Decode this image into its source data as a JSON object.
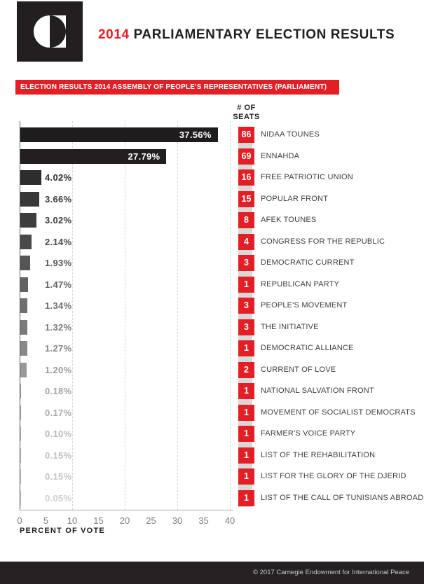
{
  "header": {
    "title_year": "2014",
    "title_rest": "PARLIAMENTARY ELECTION RESULTS"
  },
  "banner": {
    "label": "ELECTION RESULTS 2014 ASSEMBLY OF PEOPLE'S REPRESENTATIVES (PARLIAMENT)"
  },
  "seats_header": {
    "line1": "# OF",
    "line2": "SEATS"
  },
  "chart_data": {
    "type": "bar",
    "orientation": "horizontal",
    "title": "2014 Parliamentary Election Results",
    "xlabel": "PERCENT OF VOTE",
    "ylabel": "",
    "xlim": [
      0,
      40
    ],
    "xticks": [
      0,
      5,
      10,
      15,
      20,
      25,
      30,
      35,
      40
    ],
    "gridlines_at": [
      10,
      20,
      30,
      40
    ],
    "grid": "dashed-vertical",
    "series": [
      {
        "party": "NIDAA TOUNES",
        "percent": 37.56,
        "percent_label": "37.56%",
        "seats": 86,
        "bar_color": "#1f1c1d",
        "label_color": "#ffffff",
        "label_inside": true
      },
      {
        "party": "ENNAHDA",
        "percent": 27.79,
        "percent_label": "27.79%",
        "seats": 69,
        "bar_color": "#231f20",
        "label_color": "#ffffff",
        "label_inside": true
      },
      {
        "party": "FREE PATRIOTIC UNION",
        "percent": 4.02,
        "percent_label": "4.02%",
        "seats": 16,
        "bar_color": "#2d2d2d",
        "label_color": "#2d2d2d",
        "label_inside": false
      },
      {
        "party": "POPULAR FRONT",
        "percent": 3.66,
        "percent_label": "3.66%",
        "seats": 15,
        "bar_color": "#383838",
        "label_color": "#383838",
        "label_inside": false
      },
      {
        "party": "AFEK TOUNES",
        "percent": 3.02,
        "percent_label": "3.02%",
        "seats": 8,
        "bar_color": "#3d3d3d",
        "label_color": "#3d3d3d",
        "label_inside": false
      },
      {
        "party": "CONGRESS FOR THE REPUBLIC",
        "percent": 2.14,
        "percent_label": "2.14%",
        "seats": 4,
        "bar_color": "#494949",
        "label_color": "#494949",
        "label_inside": false
      },
      {
        "party": "DEMOCRATIC CURRENT",
        "percent": 1.93,
        "percent_label": "1.93%",
        "seats": 3,
        "bar_color": "#555555",
        "label_color": "#555555",
        "label_inside": false
      },
      {
        "party": "REPUBLICAN PARTY",
        "percent": 1.47,
        "percent_label": "1.47%",
        "seats": 1,
        "bar_color": "#636363",
        "label_color": "#636363",
        "label_inside": false
      },
      {
        "party": "PEOPLE'S MOVEMENT",
        "percent": 1.34,
        "percent_label": "1.34%",
        "seats": 3,
        "bar_color": "#6f6f6f",
        "label_color": "#6f6f6f",
        "label_inside": false
      },
      {
        "party": "THE INITIATIVE",
        "percent": 1.32,
        "percent_label": "1.32%",
        "seats": 3,
        "bar_color": "#7a7a7a",
        "label_color": "#7a7a7a",
        "label_inside": false
      },
      {
        "party": "DEMOCRATIC ALLIANCE",
        "percent": 1.27,
        "percent_label": "1.27%",
        "seats": 1,
        "bar_color": "#888888",
        "label_color": "#888888",
        "label_inside": false
      },
      {
        "party": "CURRENT OF LOVE",
        "percent": 1.2,
        "percent_label": "1.20%",
        "seats": 2,
        "bar_color": "#999999",
        "label_color": "#999999",
        "label_inside": false
      },
      {
        "party": "NATIONAL SALVATION FRONT",
        "percent": 0.18,
        "percent_label": "0.18%",
        "seats": 1,
        "bar_color": "#a3a3a3",
        "label_color": "#a3a3a3",
        "label_inside": false
      },
      {
        "party": "MOVEMENT OF SOCIALIST DEMOCRATS",
        "percent": 0.17,
        "percent_label": "0.17%",
        "seats": 1,
        "bar_color": "#ababab",
        "label_color": "#ababab",
        "label_inside": false
      },
      {
        "party": "FARMER'S VOICE PARTY",
        "percent": 0.1,
        "percent_label": "0.10%",
        "seats": 1,
        "bar_color": "#b8b8b8",
        "label_color": "#b8b8b8",
        "label_inside": false
      },
      {
        "party": "LIST OF THE REHABILITATION",
        "percent": 0.15,
        "percent_label": "0.15%",
        "seats": 1,
        "bar_color": "#bfbfbf",
        "label_color": "#bfbfbf",
        "label_inside": false
      },
      {
        "party": "LIST FOR THE GLORY OF THE DJERID",
        "percent": 0.15,
        "percent_label": "0.15%",
        "seats": 1,
        "bar_color": "#c5c5c5",
        "label_color": "#c5c5c5",
        "label_inside": false
      },
      {
        "party": "LIST OF THE CALL OF TUNISIANS ABROAD",
        "percent": 0.05,
        "percent_label": "0.05%",
        "seats": 1,
        "bar_color": "#cdcdcd",
        "label_color": "#cdcdcd",
        "label_inside": false
      }
    ]
  },
  "footer": {
    "copyright": "© 2017 Carnegie Endowment for International Peace"
  },
  "colors": {
    "accent_red": "#e41e25",
    "ink": "#231f20",
    "seat_strip": "#d8d8d8",
    "grid_line": "#d7d7d7"
  }
}
